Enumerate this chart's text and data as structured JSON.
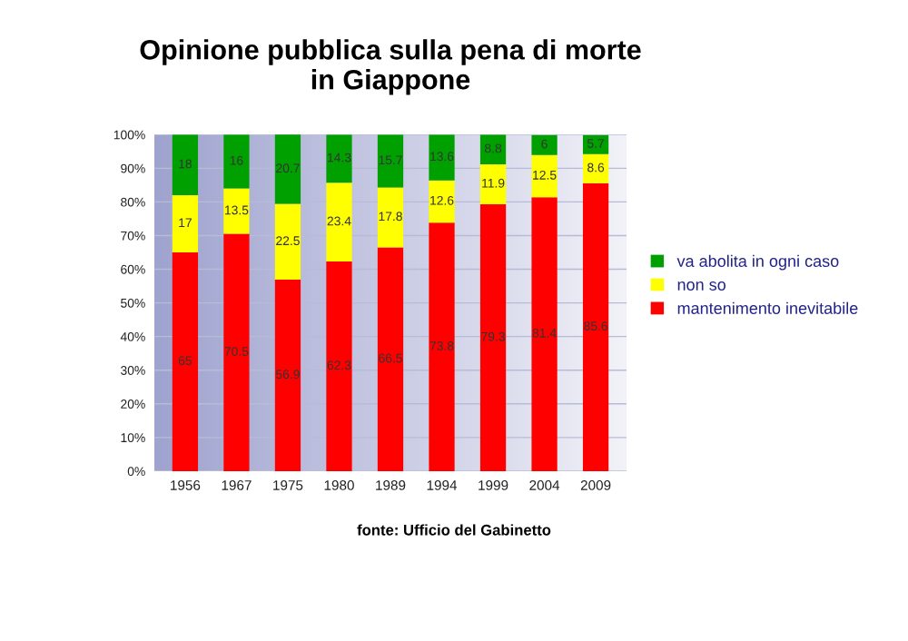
{
  "chart_data": {
    "type": "bar",
    "title": "Opinione pubblica sulla pena di morte\nin Giappone",
    "categories": [
      "1956",
      "1967",
      "1975",
      "1980",
      "1989",
      "1994",
      "1999",
      "2004",
      "2009"
    ],
    "stacked": true,
    "data_labels": true,
    "series": [
      {
        "name": "mantenimento inevitabile",
        "color": "#ff0000",
        "values": [
          65,
          70.5,
          56.9,
          62.3,
          66.5,
          73.8,
          79.3,
          81.4,
          85.6
        ]
      },
      {
        "name": "non so",
        "color": "#ffff00",
        "values": [
          17,
          13.5,
          22.5,
          23.4,
          17.8,
          12.6,
          11.9,
          12.5,
          8.6
        ]
      },
      {
        "name": "va abolita in ogni caso",
        "color": "#00a000",
        "values": [
          18,
          16,
          20.7,
          14.3,
          15.7,
          13.6,
          8.8,
          6,
          5.7
        ]
      }
    ],
    "ylim": [
      0,
      100
    ],
    "yticks": [
      {
        "value": 0,
        "label": "0%"
      },
      {
        "value": 10,
        "label": "10%"
      },
      {
        "value": 20,
        "label": "20%"
      },
      {
        "value": 30,
        "label": "30%"
      },
      {
        "value": 40,
        "label": "40%"
      },
      {
        "value": 50,
        "label": "50%"
      },
      {
        "value": 60,
        "label": "60%"
      },
      {
        "value": 70,
        "label": "70%"
      },
      {
        "value": 80,
        "label": "80%"
      },
      {
        "value": 90,
        "label": "90%"
      },
      {
        "value": 100,
        "label": "100%"
      }
    ],
    "grid": "y",
    "legend": "right",
    "annotations": [
      "fonte: Ufficio del Gabinetto"
    ]
  }
}
